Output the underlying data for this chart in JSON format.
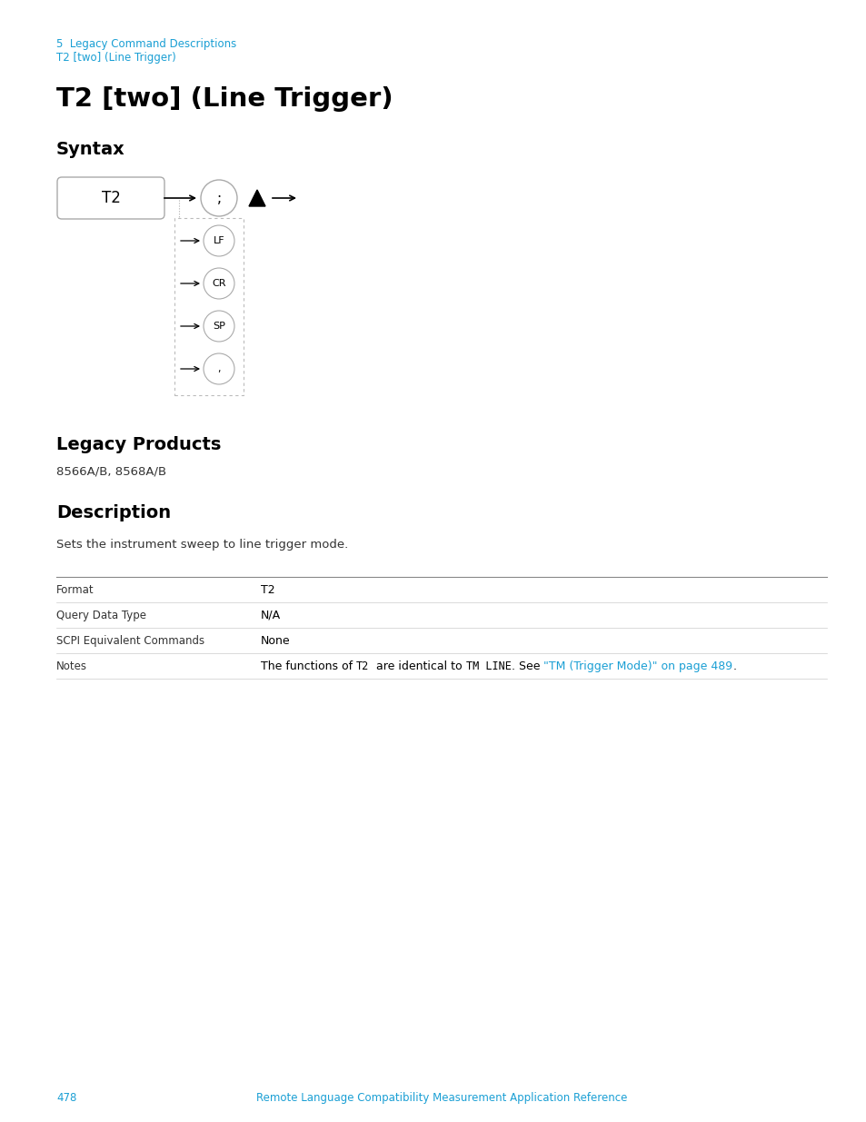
{
  "bg_color": "#ffffff",
  "breadcrumb_line1": "5  Legacy Command Descriptions",
  "breadcrumb_line2": "T2 [two] (Line Trigger)",
  "breadcrumb_color": "#1a9fd4",
  "breadcrumb_fontsize": 8.5,
  "main_title": "T2 [two] (Line Trigger)",
  "main_title_fontsize": 21,
  "section_syntax": "Syntax",
  "section_legacy": "Legacy Products",
  "section_desc": "Description",
  "section_fontsize": 14,
  "legacy_products_text": "8566A/B, 8568A/B",
  "legacy_products_fontsize": 9.5,
  "desc_text": "Sets the instrument sweep to line trigger mode.",
  "desc_fontsize": 9.5,
  "table_label_fontsize": 8.5,
  "table_value_fontsize": 9,
  "footer_page": "478",
  "footer_text": "Remote Language Compatibility Measurement Application Reference",
  "footer_color": "#1a9fd4",
  "footer_fontsize": 8.5,
  "text_color": "#000000",
  "link_color": "#1a9fd4",
  "gray_line_color": "#aaaaaa",
  "light_line_color": "#cccccc",
  "diagram_edge_color": "#aaaaaa"
}
